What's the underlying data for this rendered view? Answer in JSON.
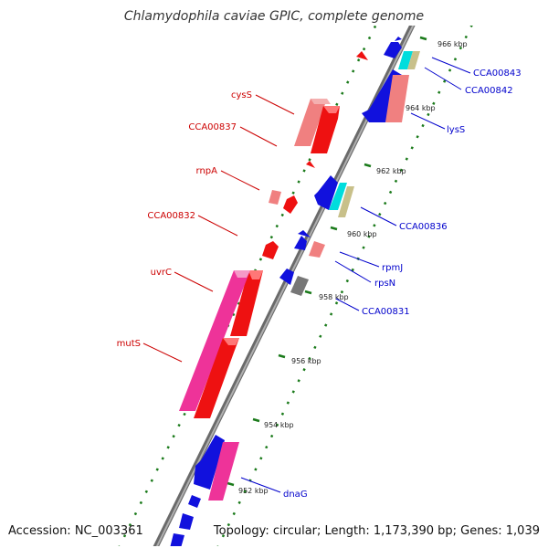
{
  "title": "Chlamydophila caviae GPIC, complete genome",
  "footer": {
    "accession": "Accession: NC_003361",
    "summary": "Topology: circular; Length: 1,173,390 bp; Genes: 1,039"
  },
  "colors": {
    "forward_label": "#cc0000",
    "reverse_label": "#0000cc",
    "backbone": "#909090",
    "tick": "#1a7a1a"
  },
  "kbp_ticks": [
    "952 kbp",
    "954 kbp",
    "956 kbp",
    "958 kbp",
    "960 kbp",
    "962 kbp",
    "964 kbp",
    "966 kbp"
  ],
  "forward_labels": [
    "cysS",
    "CCA00837",
    "rnpA",
    "CCA00832",
    "uvrC",
    "mutS"
  ],
  "reverse_labels": [
    "CCA00843",
    "CCA00842",
    "lysS",
    "CCA00836",
    "rpmJ",
    "rpsN",
    "CCA00831",
    "dnaG"
  ]
}
